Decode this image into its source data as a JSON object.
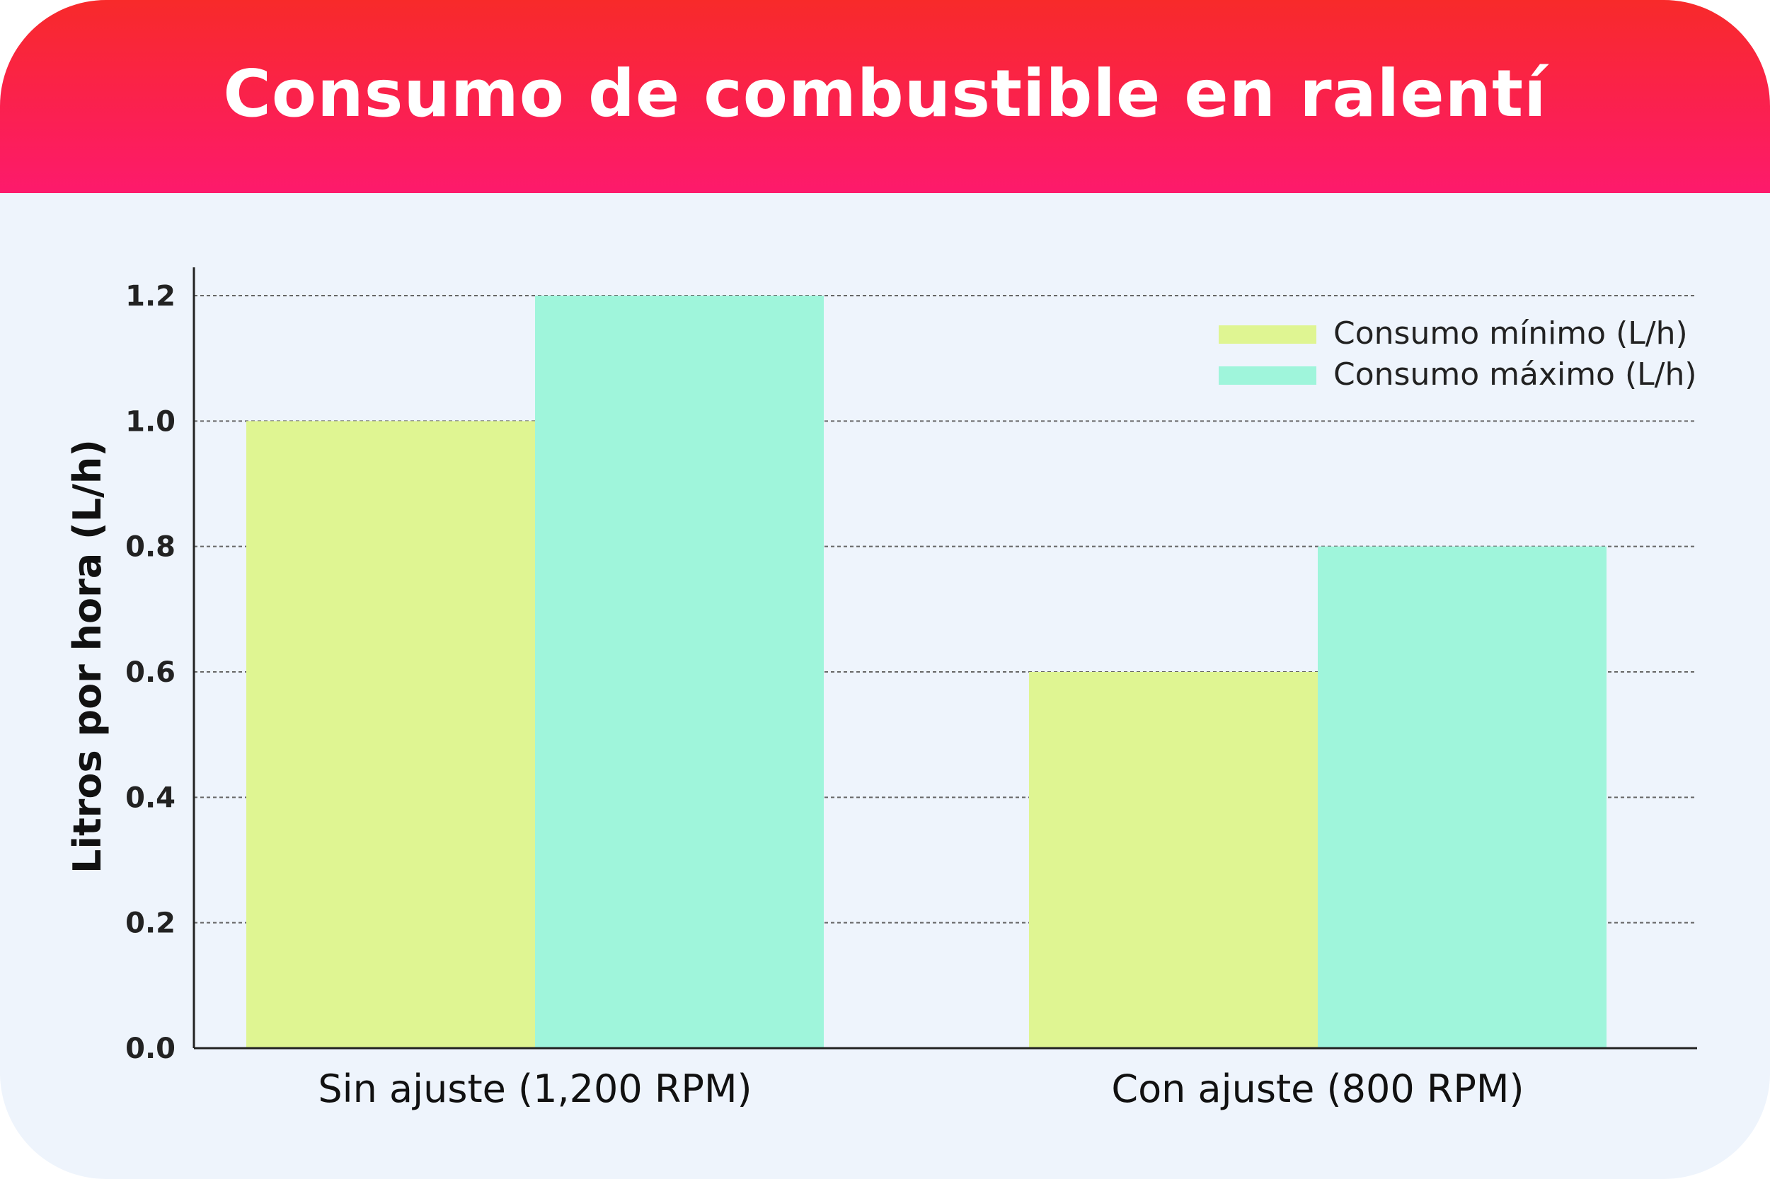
{
  "header": {
    "title": "Consumo de combustible en ralentí"
  },
  "chart_data": {
    "type": "bar",
    "title": "Consumo de combustible en ralentí",
    "xlabel": "",
    "ylabel": "Litros por hora (L/h)",
    "categories": [
      "Sin ajuste (1,200 RPM)",
      "Con ajuste (800 RPM)"
    ],
    "series": [
      {
        "name": "Consumo mínimo (L/h)",
        "values": [
          1.0,
          0.6
        ],
        "color": "#dff592"
      },
      {
        "name": "Consumo máximo (L/h)",
        "values": [
          1.2,
          0.8
        ],
        "color": "#9ff5db"
      }
    ],
    "ylim": [
      0,
      1.2
    ],
    "yticks": [
      "0.0",
      "0.2",
      "0.4",
      "0.6",
      "0.8",
      "1.0",
      "1.2"
    ],
    "grid": true,
    "legend_position": "top-right",
    "background": "#eef4fc",
    "header_colors": [
      "#f82a2a",
      "#fd1a6c"
    ]
  }
}
